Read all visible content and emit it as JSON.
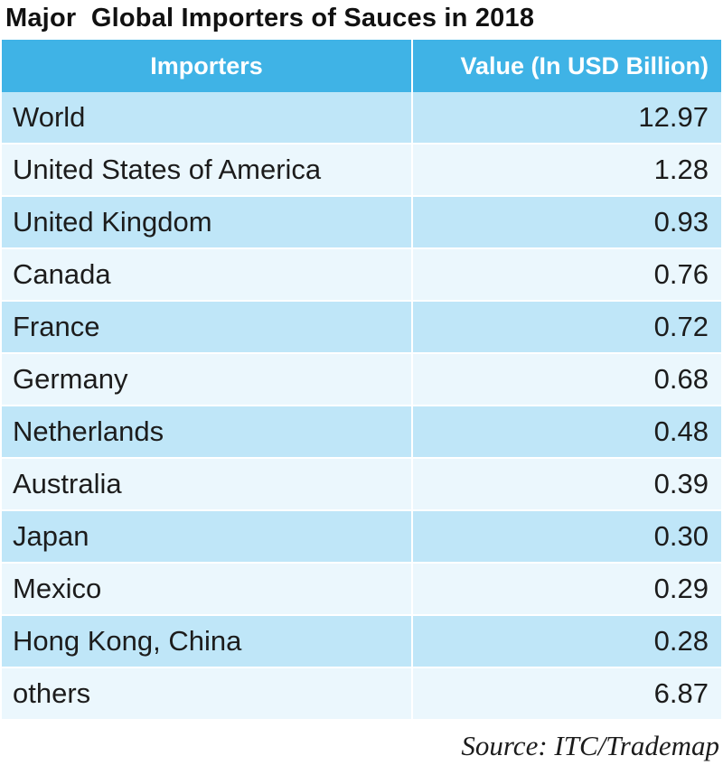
{
  "chart_data": {
    "type": "table",
    "title": "Major  Global Importers of Sauces in 2018",
    "columns": [
      "Importers",
      "Value (In USD Billion)"
    ],
    "rows": [
      {
        "importer": "World",
        "value": "12.97"
      },
      {
        "importer": "United States of America",
        "value": "1.28"
      },
      {
        "importer": "United Kingdom",
        "value": "0.93"
      },
      {
        "importer": "Canada",
        "value": "0.76"
      },
      {
        "importer": "France",
        "value": "0.72"
      },
      {
        "importer": "Germany",
        "value": "0.68"
      },
      {
        "importer": "Netherlands",
        "value": "0.48"
      },
      {
        "importer": "Australia",
        "value": "0.39"
      },
      {
        "importer": "Japan",
        "value": "0.30"
      },
      {
        "importer": "Mexico",
        "value": "0.29"
      },
      {
        "importer": "Hong Kong, China",
        "value": "0.28"
      },
      {
        "importer": "others",
        "value": "6.87"
      }
    ],
    "source": "Source: ITC/Trademap",
    "colors": {
      "header": "#3fb3e6",
      "row_odd": "#bfe6f8",
      "row_even": "#ebf7fd"
    }
  }
}
